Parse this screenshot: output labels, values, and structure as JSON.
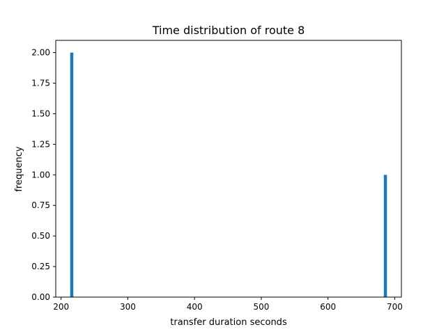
{
  "chart_data": {
    "type": "bar",
    "title": "Time distribution of route 8",
    "xlabel": "transfer duration seconds",
    "ylabel": "frequency",
    "xlim": [
      192,
      710
    ],
    "ylim": [
      0,
      2.1
    ],
    "x_ticks": [
      200,
      300,
      400,
      500,
      600,
      700
    ],
    "y_ticks": [
      0,
      0.25,
      0.5,
      0.75,
      1.0,
      1.25,
      1.5,
      1.75,
      2.0
    ],
    "x_tick_labels": [
      "200",
      "300",
      "400",
      "500",
      "600",
      "700"
    ],
    "y_tick_labels": [
      "0.00",
      "0.25",
      "0.50",
      "0.75",
      "1.00",
      "1.25",
      "1.50",
      "1.75",
      "2.00"
    ],
    "bin_width": 4.7,
    "bars": [
      {
        "x": 216,
        "value": 2
      },
      {
        "x": 686,
        "value": 1
      }
    ],
    "bar_color": "#1f77b4",
    "grid": false,
    "legend": "none"
  }
}
